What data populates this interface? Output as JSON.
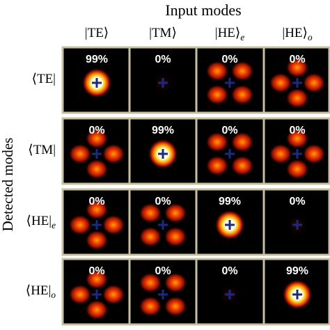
{
  "header": {
    "title": "Input modes",
    "y_label": "Detected modes"
  },
  "columns": [
    {
      "text": "|TE⟩"
    },
    {
      "text": "|TM⟩"
    },
    {
      "text": "|HE⟩",
      "sub": "e"
    },
    {
      "text": "|HE⟩",
      "sub": "o"
    }
  ],
  "rows": [
    {
      "label": {
        "text": "⟨TE|"
      },
      "cells": [
        "99%",
        "0%",
        "0%",
        "0%"
      ]
    },
    {
      "label": {
        "text": "⟨TM|"
      },
      "cells": [
        "0%",
        "99%",
        "0%",
        "0%"
      ]
    },
    {
      "label": {
        "text": "⟨HE|",
        "sub": "e"
      },
      "cells": [
        "0%",
        "0%",
        "99%",
        "0%"
      ]
    },
    {
      "label": {
        "text": "⟨HE|",
        "sub": "o"
      },
      "cells": [
        "0%",
        "0%",
        "0%",
        "99%"
      ]
    }
  ]
}
